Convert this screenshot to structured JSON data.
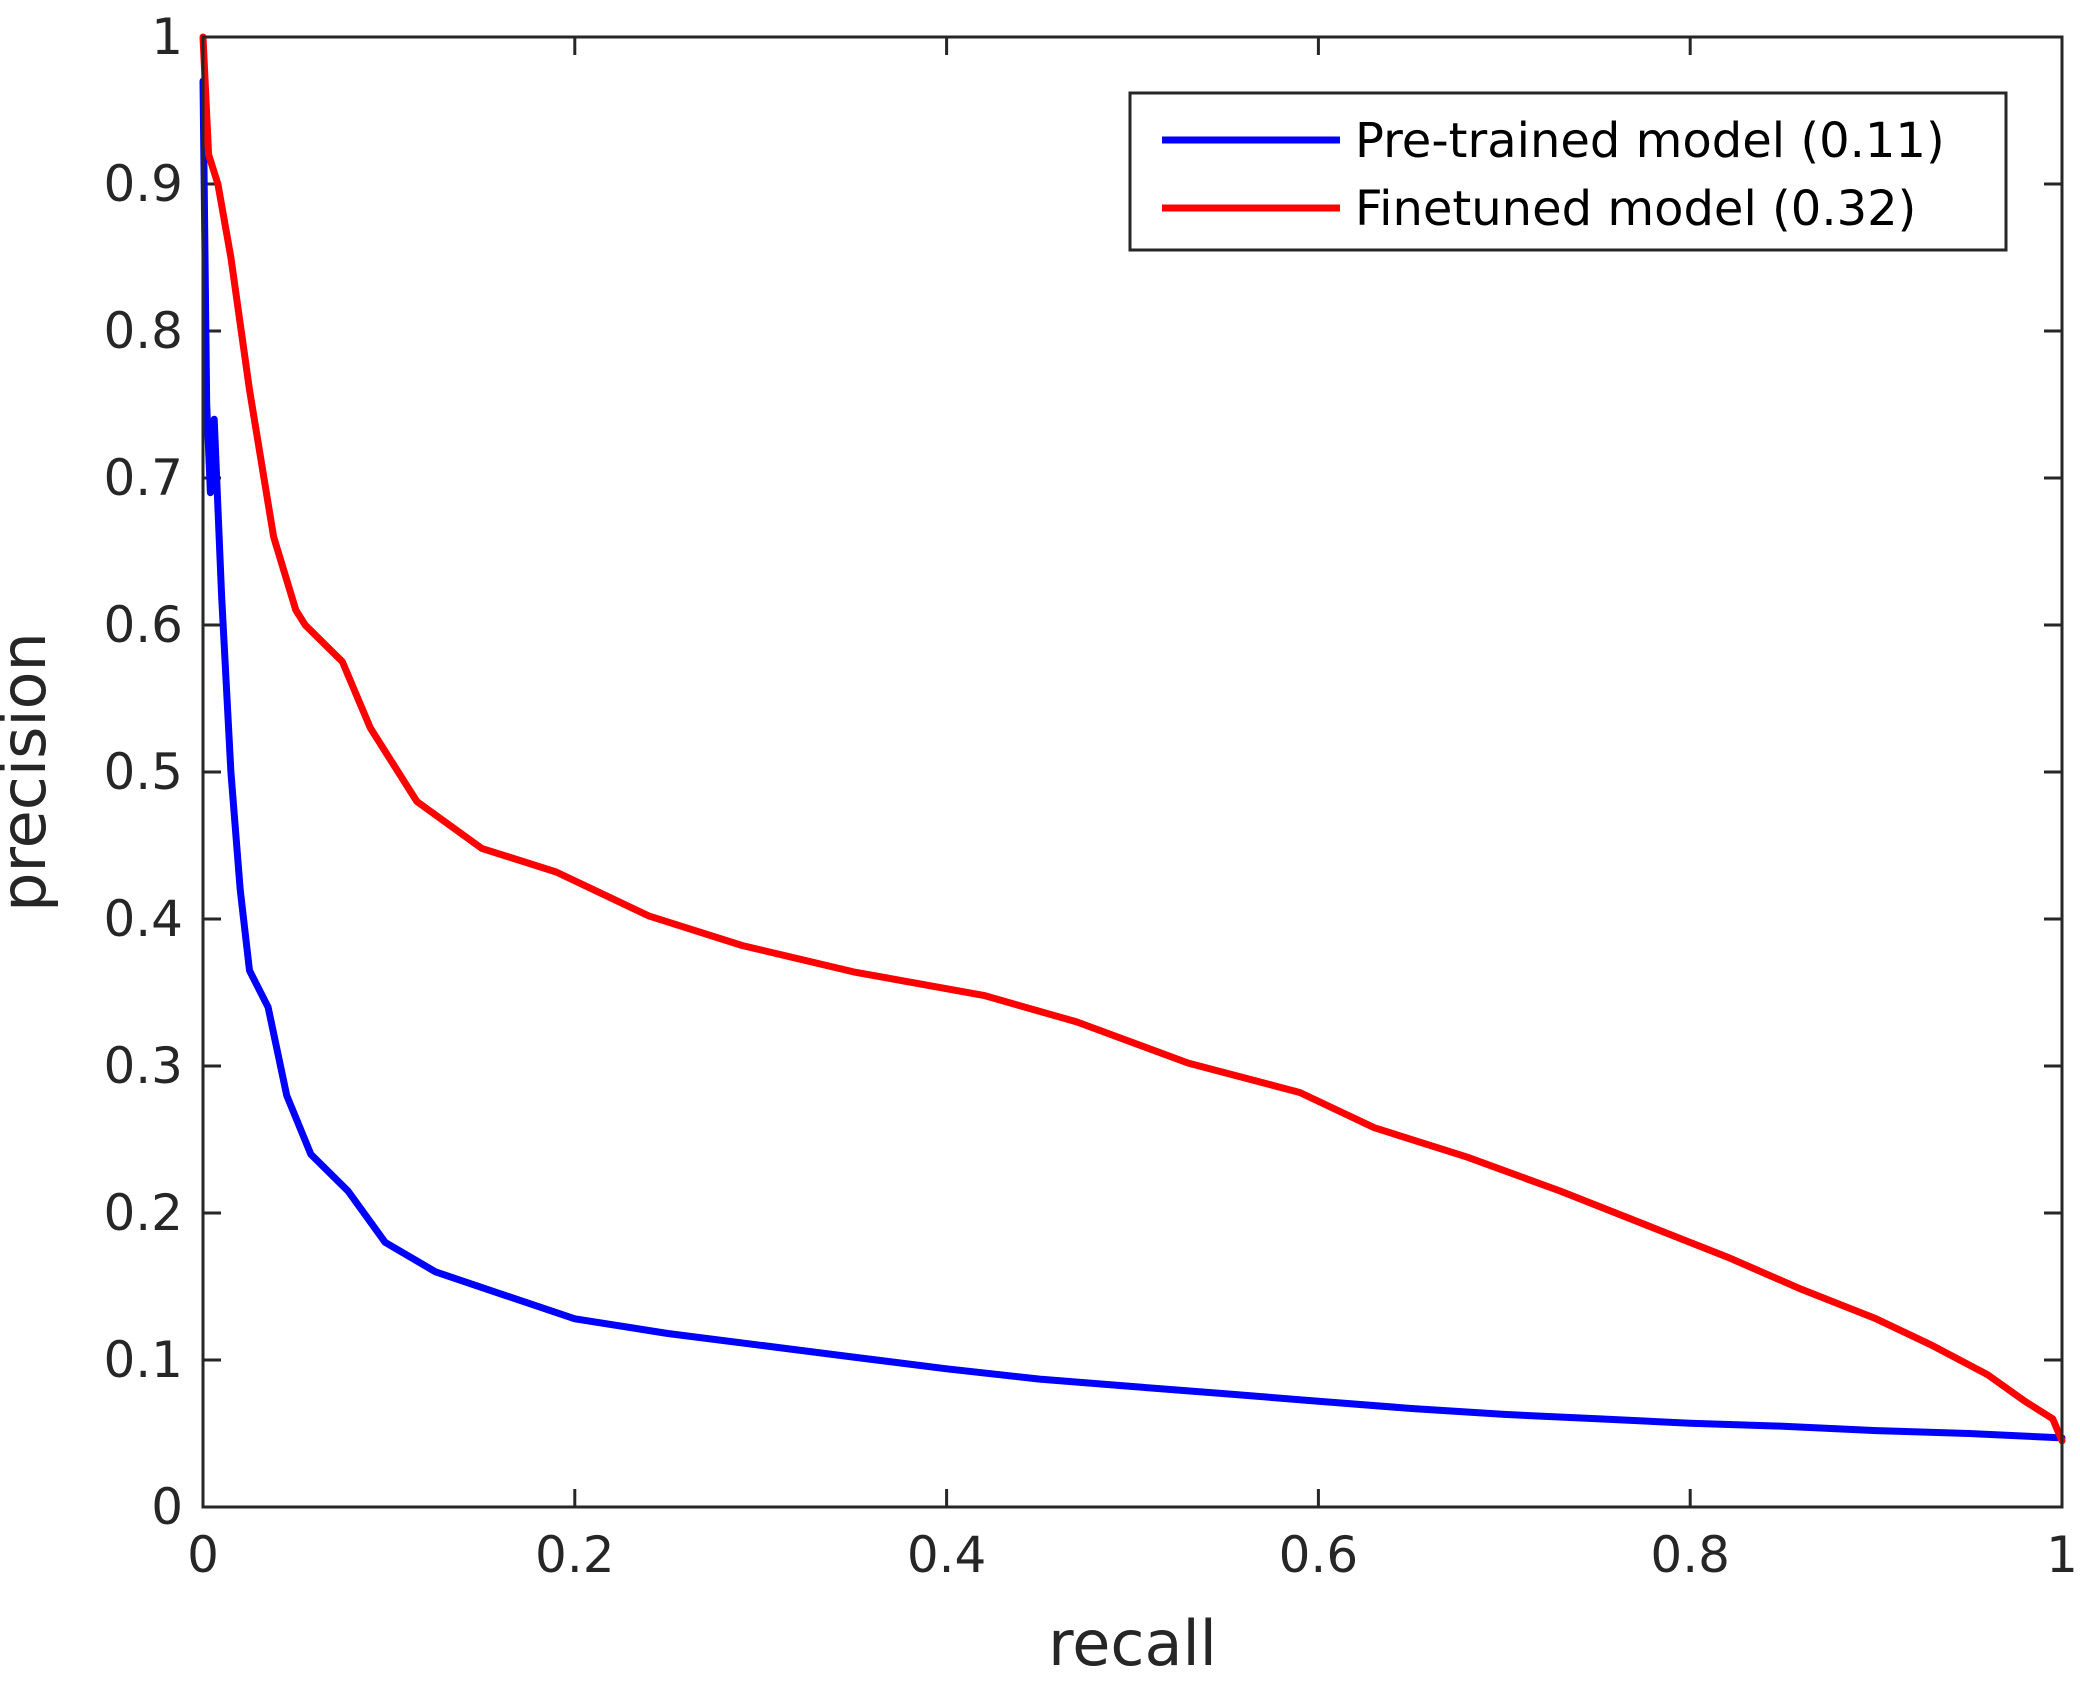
{
  "chart_data": {
    "type": "line",
    "title": "",
    "xlabel": "recall",
    "ylabel": "precision",
    "xlim": [
      0,
      1
    ],
    "ylim": [
      0,
      1
    ],
    "xticks": [
      0,
      0.2,
      0.4,
      0.6,
      0.8,
      1
    ],
    "xtick_labels": [
      "0",
      "0.2",
      "0.4",
      "0.6",
      "0.8",
      "1"
    ],
    "yticks": [
      0,
      0.1,
      0.2,
      0.3,
      0.4,
      0.5,
      0.6,
      0.7,
      0.8,
      0.9,
      1
    ],
    "ytick_labels": [
      "0",
      "0.1",
      "0.2",
      "0.3",
      "0.4",
      "0.5",
      "0.6",
      "0.7",
      "0.8",
      "0.9",
      "1"
    ],
    "grid": false,
    "legend_position": "top-right",
    "series": [
      {
        "name": "Pre-trained model (0.11)",
        "color": "#0000ff",
        "x": [
          0,
          0.002,
          0.004,
          0.006,
          0.008,
          0.01,
          0.015,
          0.02,
          0.025,
          0.035,
          0.045,
          0.058,
          0.078,
          0.098,
          0.125,
          0.16,
          0.2,
          0.25,
          0.3,
          0.35,
          0.4,
          0.45,
          0.5,
          0.55,
          0.6,
          0.65,
          0.7,
          0.75,
          0.8,
          0.85,
          0.9,
          0.95,
          1.0
        ],
        "y": [
          0.97,
          0.75,
          0.69,
          0.74,
          0.68,
          0.62,
          0.5,
          0.42,
          0.365,
          0.34,
          0.28,
          0.24,
          0.215,
          0.18,
          0.16,
          0.145,
          0.128,
          0.118,
          0.11,
          0.102,
          0.094,
          0.087,
          0.082,
          0.077,
          0.072,
          0.067,
          0.063,
          0.06,
          0.057,
          0.055,
          0.052,
          0.05,
          0.047
        ]
      },
      {
        "name": "Finetuned model (0.32)",
        "color": "#ff0000",
        "x": [
          0,
          0.003,
          0.008,
          0.015,
          0.025,
          0.038,
          0.05,
          0.055,
          0.075,
          0.09,
          0.115,
          0.15,
          0.19,
          0.24,
          0.29,
          0.35,
          0.42,
          0.47,
          0.53,
          0.59,
          0.63,
          0.68,
          0.73,
          0.78,
          0.82,
          0.86,
          0.9,
          0.93,
          0.96,
          0.98,
          0.995,
          1.0
        ],
        "y": [
          1.0,
          0.92,
          0.9,
          0.85,
          0.76,
          0.66,
          0.61,
          0.6,
          0.575,
          0.53,
          0.48,
          0.448,
          0.432,
          0.402,
          0.382,
          0.364,
          0.348,
          0.33,
          0.302,
          0.282,
          0.258,
          0.238,
          0.215,
          0.19,
          0.17,
          0.148,
          0.128,
          0.11,
          0.09,
          0.072,
          0.06,
          0.045
        ]
      }
    ]
  }
}
